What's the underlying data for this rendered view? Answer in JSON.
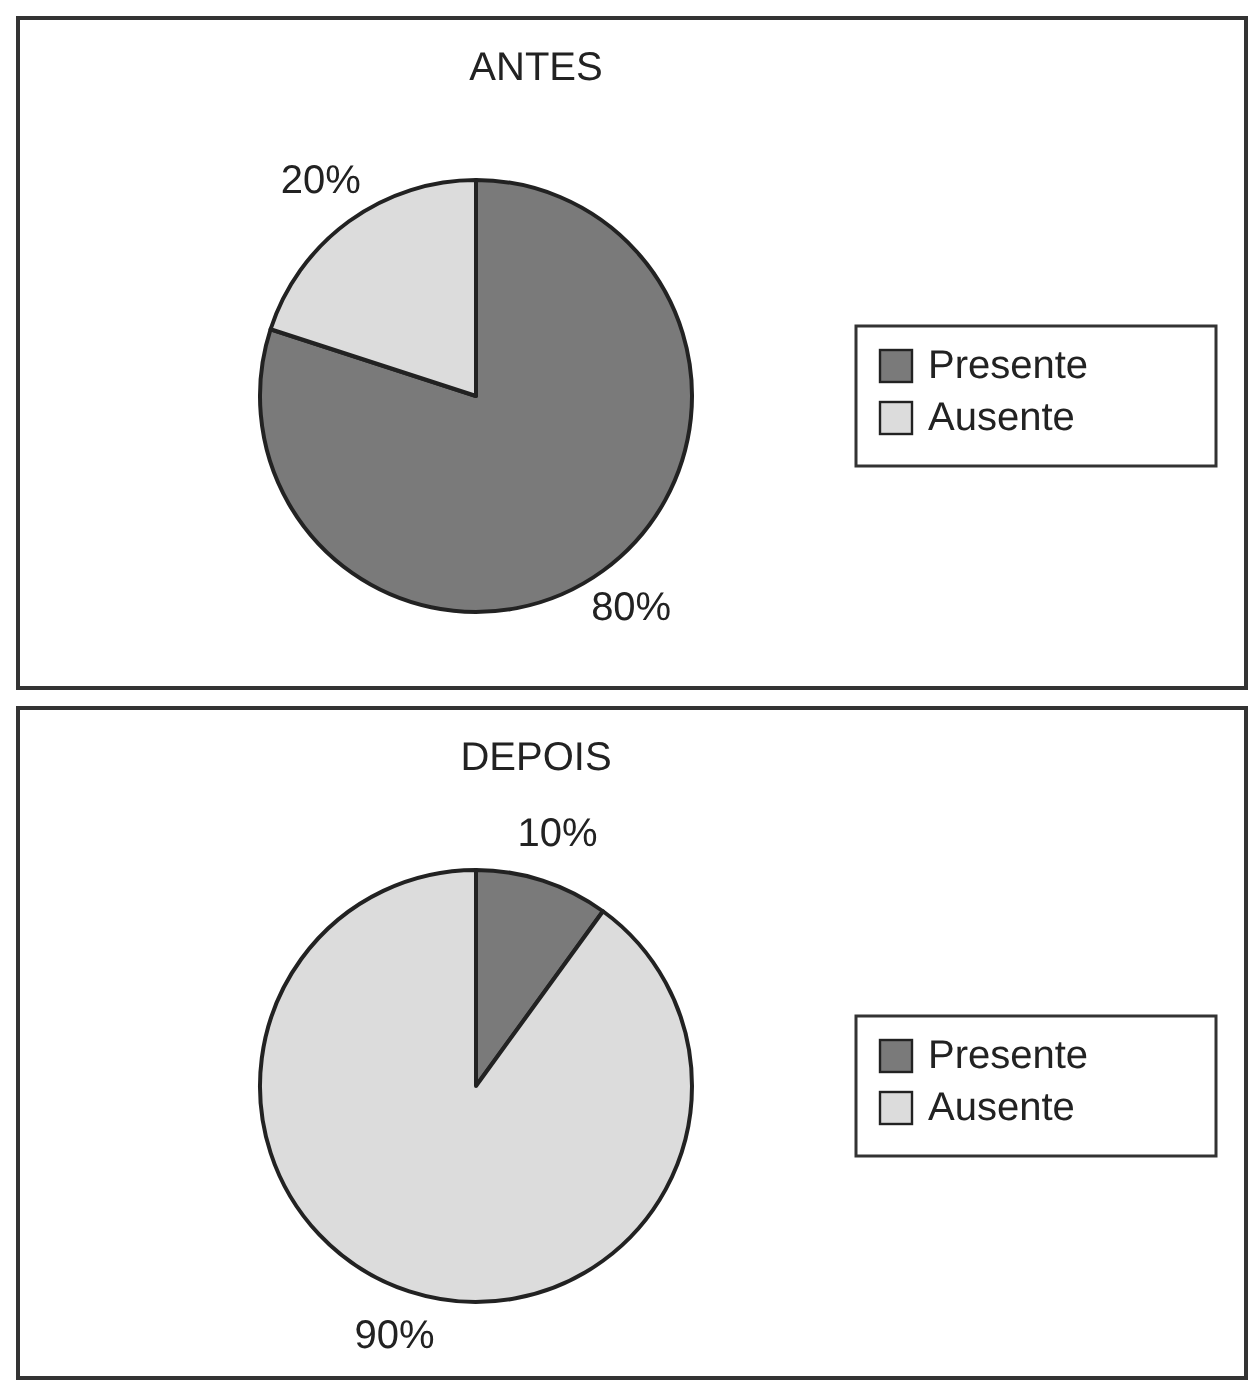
{
  "chart_data": [
    {
      "type": "pie",
      "title": "ANTES",
      "categories": [
        "Presente",
        "Ausente"
      ],
      "values": [
        80,
        20
      ],
      "colors": [
        "#7a7a7a",
        "#dcdcdc"
      ],
      "value_labels": [
        "80%",
        "20%"
      ],
      "legend": "right"
    },
    {
      "type": "pie",
      "title": "DEPOIS",
      "categories": [
        "Presente",
        "Ausente"
      ],
      "values": [
        10,
        90
      ],
      "colors": [
        "#7a7a7a",
        "#dcdcdc"
      ],
      "value_labels": [
        "10%",
        "90%"
      ],
      "legend": "right"
    }
  ]
}
